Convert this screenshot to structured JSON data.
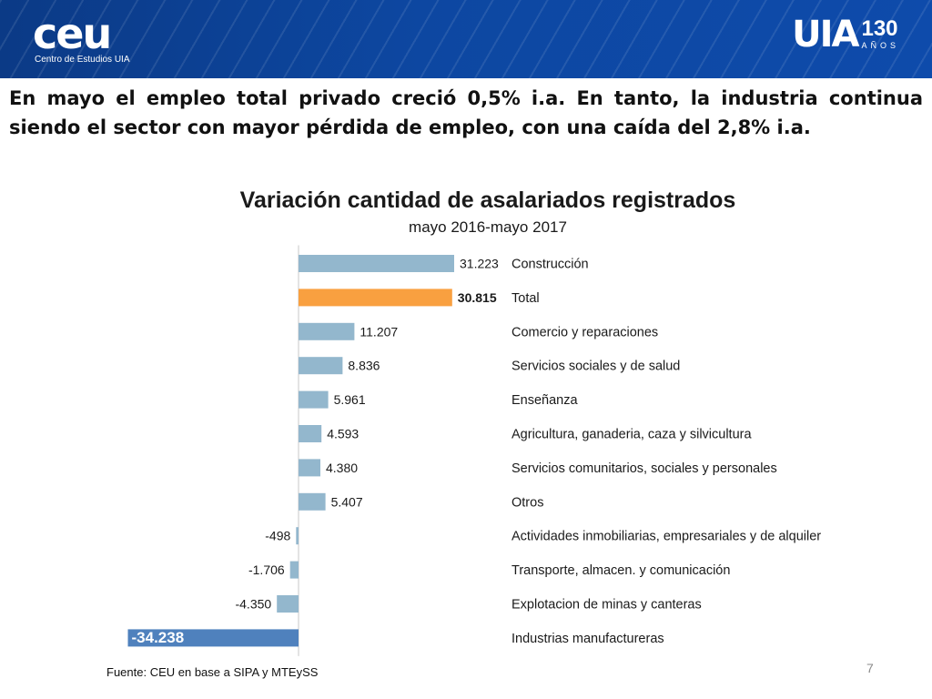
{
  "logos": {
    "ceu_mark": "ceu",
    "ceu_sub": "Centro de Estudios UIA",
    "uia_mark": "UIA",
    "uia_number": "130",
    "uia_anos": "AÑOS"
  },
  "headline": "En mayo el empleo total privado creció 0,5% i.a. En tanto, la industria continua siendo el sector con mayor pérdida de empleo, con una caída del 2,8% i.a.",
  "colors": {
    "header": "#0d47a1",
    "bar_default": "#93b7cd",
    "bar_total": "#f9a040",
    "bar_industry": "#4f81bd"
  },
  "chart_data": {
    "type": "bar",
    "orientation": "horizontal",
    "title": "Variación cantidad de asalariados registrados",
    "subtitle": "mayo 2016-mayo 2017",
    "categories": [
      "Construcción",
      "Total",
      "Comercio y reparaciones",
      "Servicios sociales y de salud",
      "Enseñanza",
      "Agricultura, ganaderia, caza y silvicultura",
      "Servicios comunitarios, sociales y personales",
      "Otros",
      "Actividades inmobiliarias, empresariales y de alquiler",
      "Transporte, almacen. y comunicación",
      "Explotacion de minas y canteras",
      "Industrias manufactureras"
    ],
    "values": [
      31223,
      30815,
      11207,
      8836,
      5961,
      4593,
      4380,
      5407,
      -498,
      -1706,
      -4350,
      -34238
    ],
    "labels": [
      "31.223",
      "30.815",
      "11.207",
      "8.836",
      "5.961",
      "4.593",
      "4.380",
      "5.407",
      "-498",
      "-1.706",
      "-4.350",
      "-34.238"
    ],
    "highlight": {
      "Total": "bar_total",
      "Industrias manufactureras": "bar_industry"
    },
    "grid": false,
    "legend": "none"
  },
  "source": "Fuente:  CEU en base a SIPA y MTEySS",
  "page_number": "7"
}
